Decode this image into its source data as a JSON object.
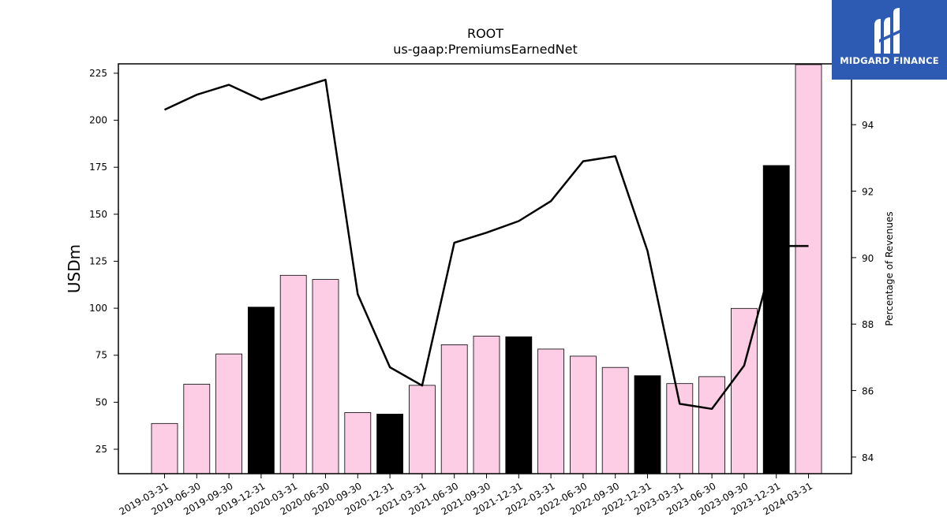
{
  "chart_data": {
    "type": "bar",
    "title": "ROOT",
    "subtitle": "us-gaap:PremiumsEarnedNet",
    "ylabel": "USDm",
    "y2label": "Percentage of Revenues",
    "categories": [
      "2019-03-31",
      "2019-06-30",
      "2019-09-30",
      "2019-12-31",
      "2020-03-31",
      "2020-06-30",
      "2020-09-30",
      "2020-12-31",
      "2021-03-31",
      "2021-06-30",
      "2021-09-30",
      "2021-12-31",
      "2022-03-31",
      "2022-06-30",
      "2022-09-30",
      "2022-12-31",
      "2023-03-31",
      "2023-06-30",
      "2023-09-30",
      "2023-12-31",
      "2024-03-31"
    ],
    "values": [
      38.7,
      59.6,
      75.7,
      100.6,
      117.5,
      115.3,
      44.5,
      43.7,
      59.0,
      80.6,
      85.2,
      84.8,
      78.3,
      74.5,
      68.5,
      64.1,
      59.9,
      63.6,
      99.9,
      175.9,
      229.6
    ],
    "bar_colors": [
      "#fccde5",
      "#fccde5",
      "#fccde5",
      "#000000",
      "#fccde5",
      "#fccde5",
      "#fccde5",
      "#000000",
      "#fccde5",
      "#fccde5",
      "#fccde5",
      "#000000",
      "#fccde5",
      "#fccde5",
      "#fccde5",
      "#000000",
      "#fccde5",
      "#fccde5",
      "#fccde5",
      "#000000",
      "#fccde5"
    ],
    "line_values": [
      94.45,
      94.9,
      95.2,
      94.75,
      95.05,
      95.35,
      88.9,
      86.7,
      86.15,
      90.45,
      90.75,
      91.1,
      91.7,
      92.9,
      93.05,
      90.2,
      85.6,
      85.45,
      86.75,
      90.35,
      90.35
    ],
    "ylim": [
      12,
      230
    ],
    "y_ticks": [
      25,
      50,
      75,
      100,
      125,
      150,
      175,
      200,
      225
    ],
    "y2lim": [
      83.5,
      95.83
    ],
    "y2_ticks": [
      84,
      86,
      88,
      90,
      92,
      94
    ]
  },
  "logo": {
    "text": "MIDGARD FINANCE",
    "bg_color": "#2d5bb3"
  }
}
